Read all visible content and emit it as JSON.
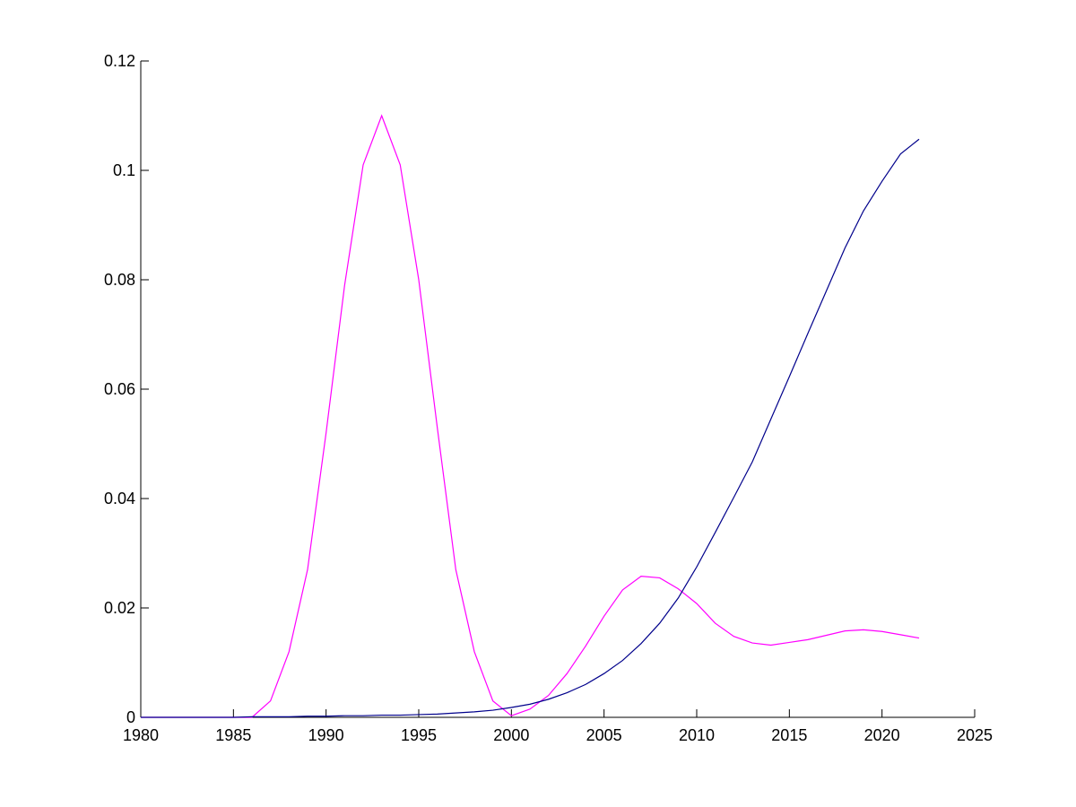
{
  "chart_data": {
    "type": "line",
    "x": [
      1980,
      1981,
      1982,
      1983,
      1984,
      1985,
      1986,
      1987,
      1988,
      1989,
      1990,
      1991,
      1992,
      1993,
      1994,
      1995,
      1996,
      1997,
      1998,
      1999,
      2000,
      2001,
      2002,
      2003,
      2004,
      2005,
      2006,
      2007,
      2008,
      2009,
      2010,
      2011,
      2012,
      2013,
      2014,
      2015,
      2016,
      2017,
      2018,
      2019,
      2020,
      2021,
      2022
    ],
    "series": [
      {
        "color": "#ff00ff",
        "values": [
          0,
          0,
          0,
          0,
          0,
          0,
          0,
          0.003,
          0.012,
          0.027,
          0.052,
          0.079,
          0.101,
          0.11,
          0.101,
          0.08,
          0.053,
          0.027,
          0.012,
          0.003,
          0.0003,
          0.0015,
          0.004,
          0.008,
          0.013,
          0.0185,
          0.0233,
          0.0258,
          0.0255,
          0.0235,
          0.0208,
          0.0172,
          0.0148,
          0.0136,
          0.0132,
          0.0137,
          0.0142,
          0.015,
          0.0158,
          0.016,
          0.0157,
          0.0151,
          0.0145
        ]
      },
      {
        "color": "#00008b",
        "values": [
          0,
          0,
          0,
          0,
          0,
          0,
          0.0001,
          0.0001,
          0.0001,
          0.0002,
          0.0002,
          0.0003,
          0.0003,
          0.0004,
          0.0004,
          0.0005,
          0.0006,
          0.0008,
          0.001,
          0.0013,
          0.0018,
          0.0024,
          0.0033,
          0.0045,
          0.006,
          0.008,
          0.0104,
          0.0135,
          0.0172,
          0.0218,
          0.0275,
          0.0338,
          0.0402,
          0.0467,
          0.0545,
          0.0623,
          0.0702,
          0.078,
          0.0858,
          0.0926,
          0.098,
          0.103,
          0.1057
        ]
      }
    ],
    "xlim": [
      1980,
      2025
    ],
    "xticks": [
      1980,
      1985,
      1990,
      1995,
      2000,
      2005,
      2010,
      2015,
      2020,
      2025
    ],
    "ylim": [
      0,
      0.12
    ],
    "yticks": [
      0,
      0.02,
      0.04,
      0.06,
      0.08,
      0.1,
      0.12
    ]
  }
}
